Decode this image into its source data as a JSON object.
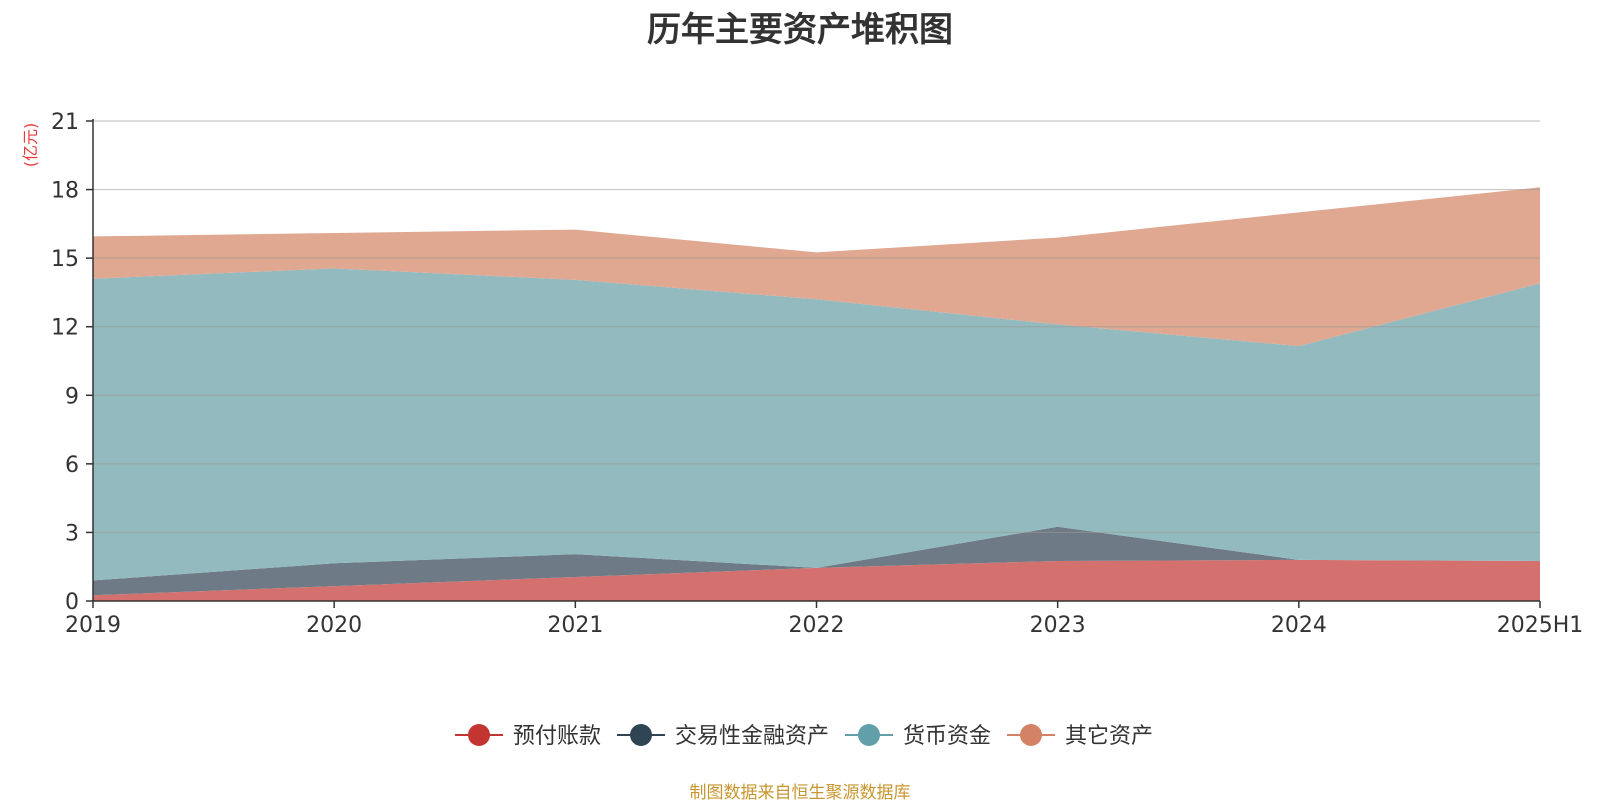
{
  "chart_data": {
    "type": "area",
    "stacked": true,
    "title": "历年主要资产堆积图",
    "ylabel": "(亿元)",
    "xlabel": "",
    "categories": [
      "2019",
      "2020",
      "2021",
      "2022",
      "2023",
      "2024",
      "2025H1"
    ],
    "ylim": [
      0,
      21
    ],
    "yticks": [
      0,
      3,
      6,
      9,
      12,
      15,
      18,
      21
    ],
    "grid": true,
    "legend_position": "bottom",
    "series": [
      {
        "name": "预付账款",
        "color": "#d4716e",
        "legend_color": "#c23531",
        "values": [
          0.25,
          0.65,
          1.05,
          1.45,
          1.75,
          1.8,
          1.75
        ]
      },
      {
        "name": "交易性金融资产",
        "color": "#6e7b87",
        "legend_color": "#2f4554",
        "values": [
          0.65,
          1.0,
          1.0,
          0.0,
          1.5,
          0.0,
          0.0
        ]
      },
      {
        "name": "货币资金",
        "color": "#92babf",
        "legend_color": "#61a0a8",
        "values": [
          13.2,
          12.9,
          12.0,
          11.75,
          8.85,
          9.35,
          12.15
        ]
      },
      {
        "name": "其它资产",
        "color": "#e0a791",
        "legend_color": "#d48265",
        "values": [
          1.85,
          1.55,
          2.2,
          2.05,
          3.8,
          5.85,
          4.2
        ]
      }
    ]
  },
  "source_note": "制图数据来自恒生聚源数据库"
}
